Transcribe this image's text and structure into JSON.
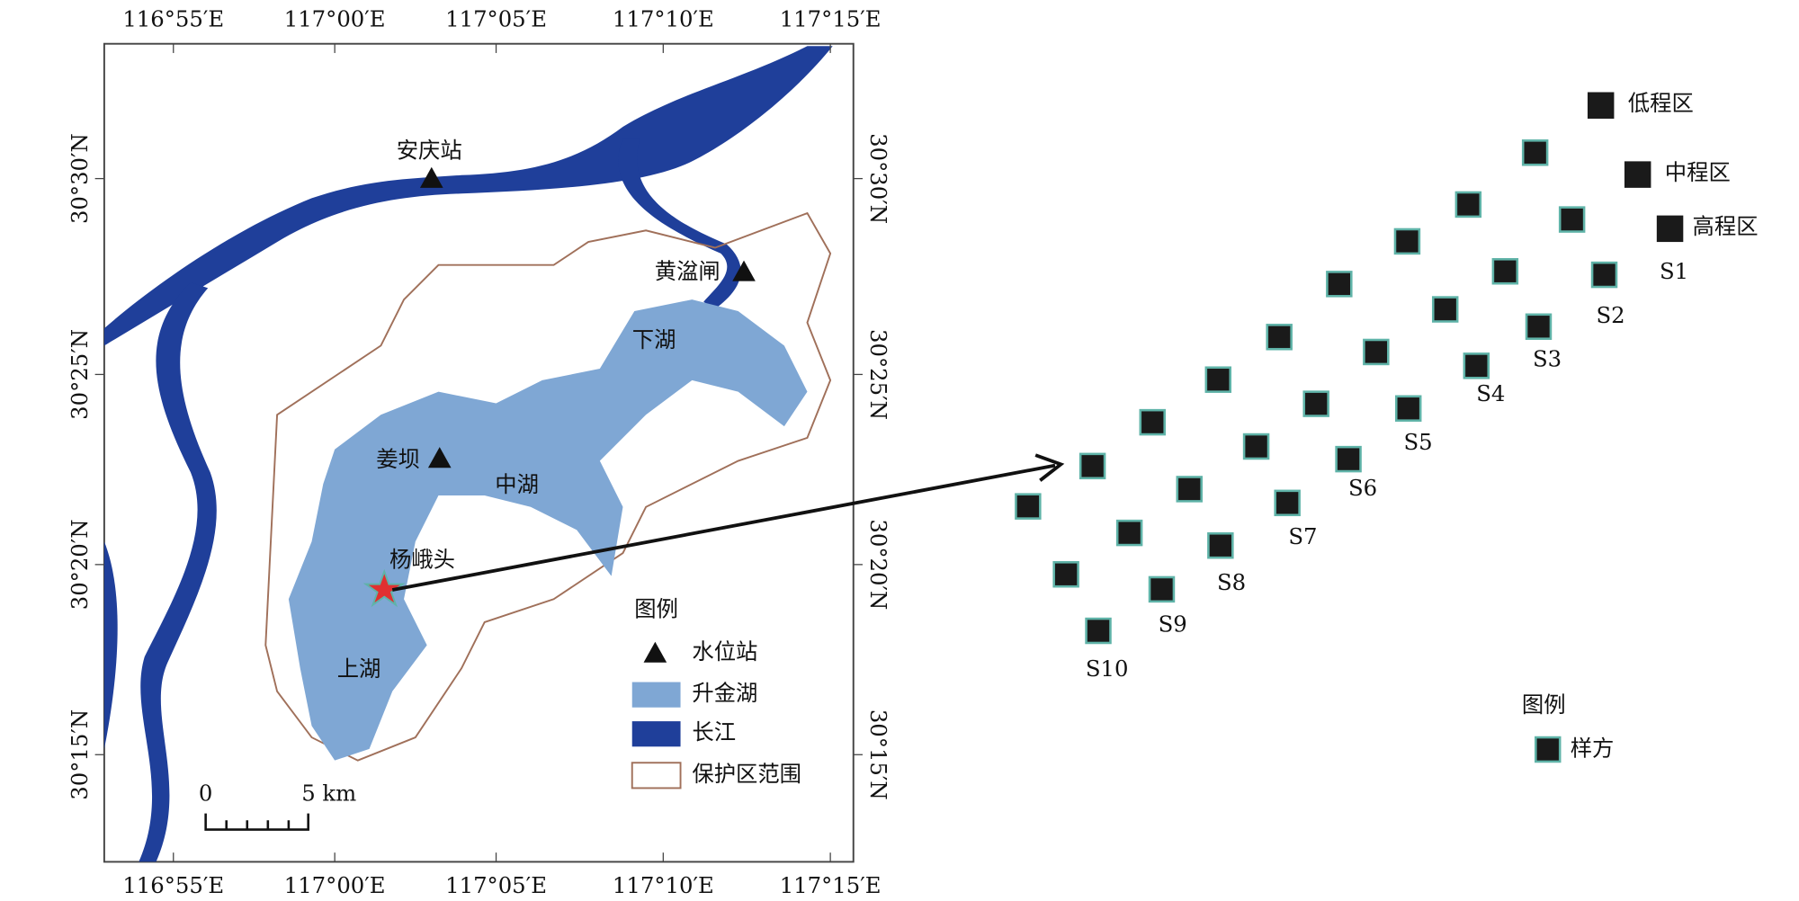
{
  "axes": {
    "top_lon": [
      "116°55′E",
      "117°00′E",
      "117°05′E",
      "117°10′E",
      "117°15′E"
    ],
    "bottom_lon": [
      "116°55′E",
      "117°00′E",
      "117°05′E",
      "117°10′E",
      "117°15′E"
    ],
    "left_lat": [
      "30°30′N",
      "30°25′N",
      "30°20′N",
      "30°15′N"
    ],
    "right_lat": [
      "30°30′N",
      "30°25′N",
      "30°20′N",
      "30°15′N"
    ]
  },
  "places": [
    "安庆站",
    "黄湓闸",
    "下湖",
    "姜坝",
    "中湖",
    "杨峨头",
    "上湖"
  ],
  "legend_left": {
    "title": "图例",
    "items": [
      "水位站",
      "升金湖",
      "长江",
      "保护区范围"
    ]
  },
  "scale_bar": {
    "start": "0",
    "end": "5 km"
  },
  "elevation_legend": [
    "低程区",
    "中程区",
    "高程区"
  ],
  "samples": [
    "S1",
    "S2",
    "S3",
    "S4",
    "S5",
    "S6",
    "S7",
    "S8",
    "S9",
    "S10"
  ],
  "legend_right": {
    "title": "图例",
    "items": [
      "样方"
    ]
  }
}
